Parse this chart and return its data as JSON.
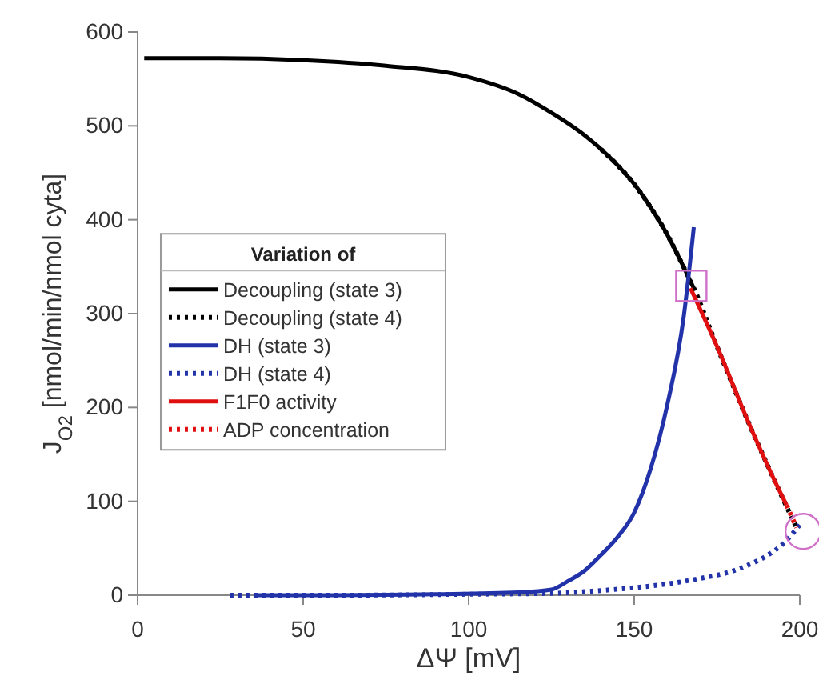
{
  "chart_data": {
    "type": "line",
    "xlabel": "ΔΨ [mV]",
    "ylabel": "J$_{O2}$ [nmol/min/nmol cyta]",
    "legend_title": "Variation of",
    "legend": "left",
    "xlim": [
      0,
      200
    ],
    "xticks": [
      0,
      50,
      100,
      150,
      200
    ],
    "ylim": [
      0,
      600
    ],
    "yticks": [
      0,
      100,
      200,
      300,
      400,
      500,
      600
    ],
    "series": [
      {
        "name": "Decoupling (state 3)",
        "color": "#000000",
        "line_style": "solid",
        "x": [
          2,
          25,
          50,
          75,
          100,
          115,
          125,
          135,
          145,
          150,
          155,
          160,
          165,
          168
        ],
        "values": [
          572,
          572,
          570,
          564,
          552,
          534,
          514,
          490,
          458,
          438,
          413,
          384,
          349,
          327
        ]
      },
      {
        "name": "Decoupling (state 4)",
        "color": "#000000",
        "line_style": "dotted",
        "x": [
          140,
          145,
          150,
          155,
          160,
          165,
          168,
          175,
          185,
          192,
          199
        ],
        "values": [
          475,
          458,
          438,
          413,
          384,
          349,
          327,
          265,
          180,
          125,
          72
        ]
      },
      {
        "name": "DH (state 3)",
        "color": "#2233aa",
        "line_style": "solid",
        "x": [
          35,
          60,
          90,
          115,
          125,
          130,
          135,
          140,
          145,
          150,
          155,
          160,
          165,
          168
        ],
        "values": [
          0,
          0,
          1,
          3,
          6,
          15,
          26,
          43,
          62,
          88,
          135,
          203,
          298,
          392
        ]
      },
      {
        "name": "DH (state 4)",
        "color": "#2233aa",
        "line_style": "dotted",
        "x": [
          28,
          60,
          100,
          125,
          140,
          150,
          160,
          170,
          180,
          185,
          190,
          195,
          200
        ],
        "values": [
          0,
          0,
          1,
          2,
          5,
          8,
          12,
          18,
          26,
          33,
          42,
          55,
          75
        ]
      },
      {
        "name": "F1F0 activity",
        "color": "#e01010",
        "line_style": "solid",
        "x": [
          167,
          175,
          185,
          192,
          196
        ],
        "values": [
          327,
          265,
          180,
          125,
          96
        ]
      },
      {
        "name": "ADP concentration",
        "color": "#e01010",
        "line_style": "dotted",
        "x": [
          196,
          199
        ],
        "values": [
          96,
          72
        ]
      }
    ]
  }
}
